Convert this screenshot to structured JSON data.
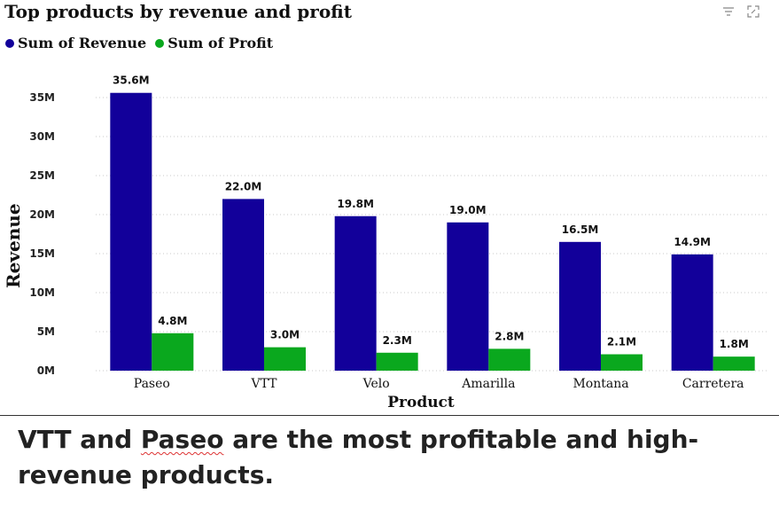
{
  "chart_data": {
    "type": "bar",
    "title": "Top products by revenue and profit",
    "xlabel": "Product",
    "ylabel": "Revenue",
    "categories": [
      "Paseo",
      "VTT",
      "Velo",
      "Amarilla",
      "Montana",
      "Carretera"
    ],
    "series": [
      {
        "name": "Sum of Revenue",
        "color": "#12009a",
        "values": [
          35.6,
          22.0,
          19.8,
          19.0,
          16.5,
          14.9
        ],
        "labels": [
          "35.6M",
          "22.0M",
          "19.8M",
          "19.0M",
          "16.5M",
          "14.9M"
        ]
      },
      {
        "name": "Sum of Profit",
        "color": "#0aa81e",
        "values": [
          4.8,
          3.0,
          2.3,
          2.8,
          2.1,
          1.8
        ],
        "labels": [
          "4.8M",
          "3.0M",
          "2.3M",
          "2.8M",
          "2.1M",
          "1.8M"
        ]
      }
    ],
    "yticks": [
      "0M",
      "5M",
      "10M",
      "15M",
      "20M",
      "25M",
      "30M",
      "35M"
    ],
    "ylim": [
      0,
      37.5
    ],
    "grid": true,
    "legend_position": "top-left"
  },
  "toolbar": {
    "filter_icon": "filter-icon",
    "focus_icon": "focus-mode-icon"
  },
  "caption": {
    "part1": "VTT and ",
    "part2": "Paseo",
    "part3": " are the most profitable and high-revenue products."
  }
}
